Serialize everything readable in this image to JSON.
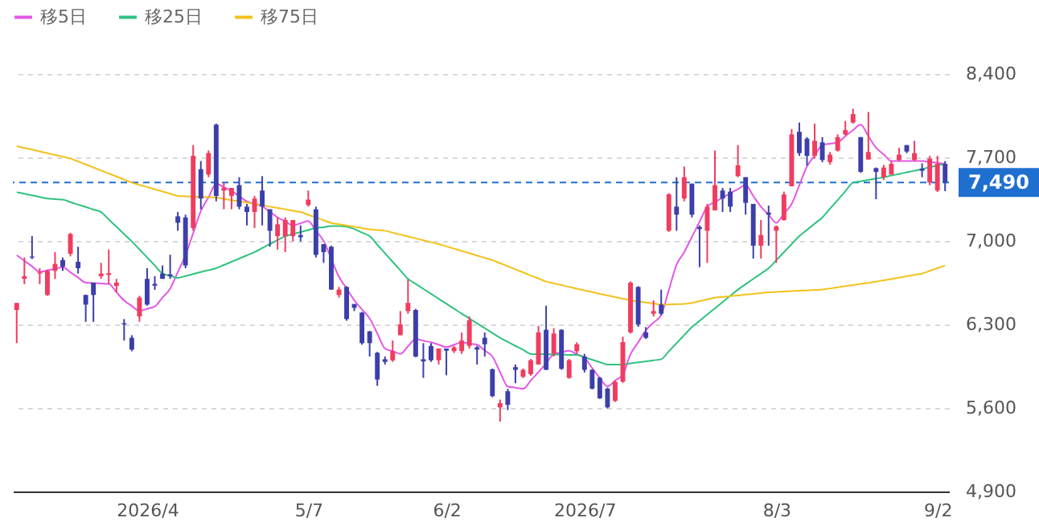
{
  "chart_data": {
    "type": "candlestick",
    "categories": [
      null,
      null,
      null,
      null,
      null,
      null,
      null,
      null,
      null,
      null,
      null,
      null,
      null,
      null,
      null,
      null,
      null,
      "2026/4",
      null,
      null,
      null,
      null,
      null,
      null,
      null,
      null,
      null,
      null,
      null,
      null,
      null,
      null,
      null,
      null,
      null,
      null,
      null,
      null,
      "5/7",
      null,
      null,
      null,
      null,
      null,
      null,
      null,
      null,
      null,
      null,
      null,
      null,
      null,
      null,
      null,
      null,
      null,
      "6/2",
      null,
      null,
      null,
      null,
      null,
      null,
      null,
      null,
      null,
      null,
      null,
      null,
      null,
      null,
      null,
      null,
      null,
      "2026/7",
      null,
      null,
      null,
      null,
      null,
      null,
      null,
      null,
      null,
      null,
      null,
      null,
      null,
      null,
      null,
      null,
      null,
      null,
      null,
      null,
      null,
      null,
      null,
      null,
      "8/3",
      null,
      null,
      null,
      null,
      null,
      null,
      null,
      null,
      null,
      null,
      null,
      null,
      null,
      null,
      null,
      null,
      null,
      null,
      null,
      null,
      "9/2",
      null
    ],
    "ohlc": [
      [
        6421,
        6480,
        6143,
        6480
      ],
      [
        6682,
        6861,
        6637,
        6704
      ],
      [
        6869,
        7040,
        6848,
        6861
      ],
      [
        6726,
        6771,
        6637,
        6735
      ],
      [
        6547,
        6760,
        6540,
        6749
      ],
      [
        6749,
        6906,
        6682,
        6807
      ],
      [
        6839,
        6861,
        6749,
        6785
      ],
      [
        6892,
        7068,
        6870,
        7058
      ],
      [
        6825,
        6951,
        6726,
        6771
      ],
      [
        6547,
        6550,
        6322,
        6466
      ],
      [
        6650,
        6650,
        6322,
        6547
      ],
      [
        6704,
        6816,
        6682,
        6726
      ],
      [
        6715,
        6928,
        6637,
        6730
      ],
      [
        6623,
        6682,
        6570,
        6650
      ],
      [
        6310,
        6345,
        6165,
        6300
      ],
      [
        6188,
        6210,
        6075,
        6089
      ],
      [
        6367,
        6540,
        6322,
        6525
      ],
      [
        6682,
        6771,
        6457,
        6466
      ],
      [
        6640,
        6704,
        6590,
        6625
      ],
      [
        6726,
        6794,
        6682,
        6682
      ],
      [
        6720,
        6884,
        6682,
        6704
      ],
      [
        7206,
        7242,
        7085,
        7152
      ],
      [
        7197,
        7220,
        6771,
        6794
      ],
      [
        7108,
        7803,
        7085,
        7713
      ],
      [
        7601,
        7669,
        7265,
        7355
      ],
      [
        7556,
        7758,
        7534,
        7736
      ],
      [
        7974,
        7983,
        7332,
        7377
      ],
      [
        7422,
        7489,
        7265,
        7444
      ],
      [
        7377,
        7444,
        7265,
        7444
      ],
      [
        7467,
        7534,
        7265,
        7287
      ],
      [
        7287,
        7310,
        7130,
        7242
      ],
      [
        7242,
        7377,
        7108,
        7355
      ],
      [
        7422,
        7543,
        7130,
        7287
      ],
      [
        7265,
        7265,
        6951,
        7085
      ],
      [
        7040,
        7197,
        6928,
        7139
      ],
      [
        7040,
        7197,
        6906,
        7175
      ],
      [
        7040,
        7175,
        6996,
        7175
      ],
      [
        7049,
        7130,
        6996,
        7031
      ],
      [
        7301,
        7422,
        7287,
        7346
      ],
      [
        7265,
        7287,
        6861,
        6883
      ],
      [
        6973,
        6973,
        6816,
        6906
      ],
      [
        6951,
        6960,
        6590,
        6592
      ],
      [
        6547,
        6614,
        6525,
        6592
      ],
      [
        6614,
        6620,
        6331,
        6345
      ],
      [
        6471,
        6471,
        6412,
        6439
      ],
      [
        6399,
        6405,
        6130,
        6143
      ],
      [
        6242,
        6245,
        6031,
        6143
      ],
      [
        6062,
        6070,
        5785,
        5838
      ],
      [
        6008,
        6031,
        5964,
        5986
      ],
      [
        5999,
        6165,
        5986,
        6076
      ],
      [
        6210,
        6412,
        6210,
        6300
      ],
      [
        6412,
        6677,
        6390,
        6480
      ],
      [
        6421,
        6430,
        6025,
        6031
      ],
      [
        6008,
        6143,
        5852,
        5990
      ],
      [
        6120,
        6143,
        5986,
        6000
      ],
      [
        6000,
        6098,
        5964,
        6098
      ],
      [
        6098,
        6098,
        5874,
        6080
      ],
      [
        6076,
        6120,
        6060,
        6108
      ],
      [
        6076,
        6232,
        6053,
        6165
      ],
      [
        6120,
        6367,
        6098,
        6336
      ],
      [
        6108,
        6120,
        5964,
        6089
      ],
      [
        6188,
        6232,
        6031,
        6134
      ],
      [
        5924,
        5930,
        5690,
        5699
      ],
      [
        5605,
        5670,
        5485,
        5640
      ],
      [
        5740,
        5760,
        5582,
        5627
      ],
      [
        5942,
        5964,
        5807,
        5919
      ],
      [
        5861,
        5930,
        5850,
        5919
      ],
      [
        5883,
        6010,
        5870,
        6000
      ],
      [
        5964,
        6288,
        5964,
        6233
      ],
      [
        6255,
        6457,
        5919,
        5919
      ],
      [
        6053,
        6269,
        6031,
        6224
      ],
      [
        6255,
        6260,
        5920,
        5928
      ],
      [
        5852,
        6010,
        5845,
        6000
      ],
      [
        6076,
        6150,
        6053,
        6134
      ],
      [
        6031,
        6053,
        5897,
        5919
      ],
      [
        5919,
        5925,
        5755,
        5762
      ],
      [
        5852,
        5860,
        5675,
        5681
      ],
      [
        5762,
        5770,
        5596,
        5605
      ],
      [
        5659,
        5830,
        5650,
        5820
      ],
      [
        5820,
        6197,
        5810,
        6152
      ],
      [
        6233,
        6660,
        6224,
        6650
      ],
      [
        6614,
        6620,
        6280,
        6300
      ],
      [
        6233,
        6277,
        6179,
        6188
      ],
      [
        6390,
        6502,
        6367,
        6412
      ],
      [
        6466,
        6592,
        6377,
        6390
      ],
      [
        7085,
        7400,
        7075,
        7390
      ],
      [
        7287,
        7534,
        7085,
        7220
      ],
      [
        7355,
        7624,
        7332,
        7534
      ],
      [
        7480,
        7480,
        7197,
        7220
      ],
      [
        7117,
        7130,
        6780,
        7099
      ],
      [
        7085,
        7310,
        6816,
        7287
      ],
      [
        7256,
        7758,
        7256,
        7467
      ],
      [
        7422,
        7444,
        7242,
        7355
      ],
      [
        7413,
        7444,
        7242,
        7287
      ],
      [
        7543,
        7803,
        7534,
        7633
      ],
      [
        7534,
        7534,
        7220,
        7319
      ],
      [
        7310,
        7310,
        6852,
        6960
      ],
      [
        6960,
        7175,
        6852,
        7049
      ],
      [
        7238,
        7296,
        6960,
        7220
      ],
      [
        7085,
        7130,
        6816,
        7121
      ],
      [
        7175,
        7413,
        7170,
        7390
      ],
      [
        7458,
        7938,
        7458,
        7893
      ],
      [
        7915,
        7992,
        7713,
        7736
      ],
      [
        7857,
        7870,
        7633,
        7713
      ],
      [
        7713,
        7983,
        7690,
        7839
      ],
      [
        7826,
        7870,
        7660,
        7678
      ],
      [
        7660,
        7745,
        7640,
        7723
      ],
      [
        7758,
        7893,
        7749,
        7870
      ],
      [
        7893,
        8005,
        7884,
        7929
      ],
      [
        7992,
        8108,
        7983,
        8063
      ],
      [
        7870,
        7870,
        7570,
        7579
      ],
      [
        7682,
        8081,
        7682,
        7745
      ],
      [
        7610,
        7615,
        7350,
        7579
      ],
      [
        7534,
        7637,
        7511,
        7615
      ],
      [
        7556,
        7669,
        7556,
        7646
      ],
      [
        7678,
        7780,
        7669,
        7723
      ],
      [
        7803,
        7803,
        7736,
        7749
      ],
      [
        7678,
        7839,
        7669,
        7736
      ],
      [
        7606,
        7650,
        7534,
        7588
      ],
      [
        7489,
        7713,
        7467,
        7690
      ],
      [
        7422,
        7713,
        7410,
        7646
      ],
      [
        7646,
        7669,
        7417,
        7490
      ]
    ],
    "colors": [
      "#f03c5f",
      "#f03c5f",
      "#3c3faa",
      "#f03c5f",
      "#f03c5f",
      "#f03c5f",
      "#3c3faa",
      "#f03c5f",
      "#3c3faa",
      "#3c3faa",
      "#3c3faa",
      "#f03c5f",
      "#f03c5f",
      "#f03c5f",
      "#3c3faa",
      "#3c3faa",
      "#f03c5f",
      "#3c3faa",
      "#3c3faa",
      "#3c3faa",
      "#3c3faa",
      "#3c3faa",
      "#3c3faa",
      "#f03c5f",
      "#3c3faa",
      "#f03c5f",
      "#3c3faa",
      "#f03c5f",
      "#f03c5f",
      "#3c3faa",
      "#3c3faa",
      "#f03c5f",
      "#3c3faa",
      "#3c3faa",
      "#f03c5f",
      "#f03c5f",
      "#f03c5f",
      "#3c3faa",
      "#f03c5f",
      "#3c3faa",
      "#3c3faa",
      "#3c3faa",
      "#f03c5f",
      "#3c3faa",
      "#3c3faa",
      "#3c3faa",
      "#3c3faa",
      "#3c3faa",
      "#3c3faa",
      "#f03c5f",
      "#f03c5f",
      "#f03c5f",
      "#3c3faa",
      "#3c3faa",
      "#3c3faa",
      "#f03c5f",
      "#3c3faa",
      "#f03c5f",
      "#f03c5f",
      "#f03c5f",
      "#3c3faa",
      "#3c3faa",
      "#3c3faa",
      "#f03c5f",
      "#3c3faa",
      "#3c3faa",
      "#f03c5f",
      "#f03c5f",
      "#f03c5f",
      "#3c3faa",
      "#f03c5f",
      "#3c3faa",
      "#f03c5f",
      "#f03c5f",
      "#3c3faa",
      "#3c3faa",
      "#3c3faa",
      "#3c3faa",
      "#f03c5f",
      "#f03c5f",
      "#f03c5f",
      "#3c3faa",
      "#3c3faa",
      "#f03c5f",
      "#3c3faa",
      "#f03c5f",
      "#3c3faa",
      "#f03c5f",
      "#3c3faa",
      "#3c3faa",
      "#f03c5f",
      "#f03c5f",
      "#3c3faa",
      "#3c3faa",
      "#f03c5f",
      "#3c3faa",
      "#3c3faa",
      "#f03c5f",
      "#3c3faa",
      "#f03c5f",
      "#f03c5f",
      "#f03c5f",
      "#3c3faa",
      "#3c3faa",
      "#f03c5f",
      "#3c3faa",
      "#f03c5f",
      "#f03c5f",
      "#f03c5f",
      "#f03c5f",
      "#3c3faa",
      "#f03c5f",
      "#3c3faa",
      "#f03c5f",
      "#f03c5f",
      "#f03c5f",
      "#3c3faa",
      "#f03c5f",
      "#3c3faa",
      "#f03c5f",
      "#f03c5f",
      "#3c3faa"
    ],
    "series": [
      {
        "name": "移5日",
        "type": "line",
        "color": "#e457e6",
        "values": [
          6880,
          6833,
          6787,
          6740,
          6753,
          6767,
          6780,
          6737,
          6693,
          6650,
          6647,
          6643,
          6640,
          6570,
          6500,
          6456,
          6412,
          6431,
          6450,
          6525,
          6600,
          6740,
          6880,
          7065,
          7250,
          7365,
          7480,
          7450,
          7420,
          7375,
          7330,
          7310,
          7290,
          7244,
          7197,
          7164,
          7130,
          7148,
          7166,
          7083,
          7000,
          6850,
          6700,
          6601,
          6502,
          6426,
          6350,
          6224,
          6098,
          6076,
          6053,
          6116,
          6178,
          6164,
          6150,
          6130,
          6110,
          6130,
          6150,
          6140,
          6130,
          6081,
          6031,
          5900,
          5780,
          5770,
          5760,
          5830,
          5900,
          5975,
          6050,
          6065,
          6080,
          6050,
          6020,
          5935,
          5850,
          5780,
          5830,
          5880,
          6050,
          6150,
          6250,
          6315,
          6380,
          6590,
          6800,
          6906,
          7033,
          7160,
          7287,
          7325,
          7362,
          7400,
          7434,
          7467,
          7377,
          7287,
          7220,
          7152,
          7231,
          7310,
          7467,
          7624,
          7714,
          7803,
          7815,
          7826,
          7878,
          7929,
          7974,
          7878,
          7781,
          7725,
          7669,
          7669,
          7669,
          7669,
          7669,
          7661,
          7654,
          7646
        ]
      },
      {
        "name": "移25日",
        "type": "line",
        "color": "#2ec27e",
        "values": [
          7408,
          7395,
          7382,
          7368,
          7355,
          7350,
          7346,
          7325,
          7304,
          7284,
          7263,
          7242,
          7180,
          7119,
          7057,
          6996,
          6929,
          6861,
          6794,
          6726,
          6708,
          6690,
          6706,
          6722,
          6739,
          6755,
          6771,
          6798,
          6825,
          6852,
          6879,
          6906,
          6940,
          6973,
          7007,
          7040,
          7057,
          7074,
          7091,
          7108,
          7115,
          7125,
          7125,
          7120,
          7100,
          7070,
          7040,
          6968,
          6897,
          6825,
          6754,
          6682,
          6640,
          6598,
          6557,
          6515,
          6474,
          6432,
          6390,
          6350,
          6309,
          6269,
          6228,
          6188,
          6154,
          6120,
          6087,
          6053,
          6051,
          6050,
          6048,
          6047,
          6045,
          6044,
          6024,
          6004,
          5984,
          5964,
          5964,
          5964,
          5973,
          5982,
          5990,
          5999,
          6008,
          6075,
          6143,
          6210,
          6278,
          6330,
          6383,
          6435,
          6487,
          6540,
          6592,
          6637,
          6682,
          6726,
          6771,
          6838,
          6906,
          6973,
          7040,
          7092,
          7145,
          7197,
          7270,
          7343,
          7416,
          7489,
          7500,
          7511,
          7523,
          7534,
          7548,
          7561,
          7575,
          7588,
          7603,
          7617,
          7632,
          7646
        ]
      },
      {
        "name": "移75日",
        "type": "line",
        "color": "#f2c21b",
        "values": [
          7794,
          7779,
          7765,
          7750,
          7735,
          7720,
          7706,
          7691,
          7666,
          7641,
          7616,
          7590,
          7565,
          7540,
          7514,
          7489,
          7470,
          7452,
          7433,
          7414,
          7396,
          7377,
          7374,
          7371,
          7369,
          7366,
          7363,
          7352,
          7342,
          7331,
          7321,
          7310,
          7299,
          7287,
          7276,
          7265,
          7253,
          7242,
          7219,
          7196,
          7173,
          7150,
          7140,
          7130,
          7119,
          7108,
          7097,
          7091,
          7085,
          7069,
          7053,
          7037,
          7021,
          7005,
          6989,
          6973,
          6954,
          6935,
          6916,
          6897,
          6877,
          6858,
          6839,
          6813,
          6788,
          6762,
          6736,
          6710,
          6685,
          6659,
          6644,
          6630,
          6615,
          6600,
          6586,
          6571,
          6556,
          6543,
          6529,
          6516,
          6502,
          6493,
          6484,
          6475,
          6466,
          6468,
          6470,
          6472,
          6480,
          6495,
          6510,
          6524,
          6530,
          6537,
          6543,
          6550,
          6556,
          6563,
          6569,
          6572,
          6576,
          6579,
          6582,
          6585,
          6589,
          6592,
          6602,
          6611,
          6621,
          6630,
          6640,
          6649,
          6659,
          6670,
          6681,
          6692,
          6704,
          6715,
          6726,
          6749,
          6771,
          6794
        ]
      }
    ],
    "ylim": [
      4900,
      8400
    ],
    "yticks": [
      {
        "value": 4900,
        "label": "4,900"
      },
      {
        "value": 5600,
        "label": "5,600"
      },
      {
        "value": 6300,
        "label": "6,300"
      },
      {
        "value": 7000,
        "label": "7,000"
      },
      {
        "value": 7700,
        "label": "7,700"
      },
      {
        "value": 8400,
        "label": "8,400"
      }
    ],
    "grid": "y",
    "legend": "top left",
    "ref_lines": [
      {
        "axis": "y",
        "value": 7490,
        "label": "7,490",
        "color": "#1f6fd1",
        "line_style": "dashed"
      }
    ]
  }
}
